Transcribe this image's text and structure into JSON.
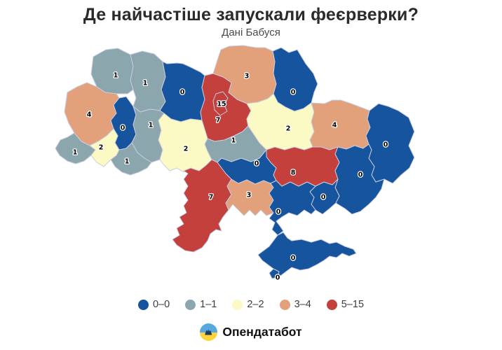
{
  "header": {
    "title": "Де найчастіше запускали феєрверки?",
    "subtitle": "Дані Бабуся"
  },
  "footer": {
    "brand": "Опендатабот",
    "logo_blue": "#55a9e0",
    "logo_yellow": "#ffd23c",
    "logo_silhouette": "#1d3d5c"
  },
  "chart_data": {
    "type": "choropleth-map",
    "title": "Де найчастіше запускали феєрверки?",
    "subtitle": "Дані Бабуся",
    "geography": "ukraine-oblasts",
    "legend_position": "bottom-center",
    "map_border_color": "#c9cde1",
    "label_color": "#000000",
    "label_halo": "#ffffff",
    "buckets": [
      {
        "label": "0–0",
        "min": 0,
        "max": 0,
        "color": "#17549e"
      },
      {
        "label": "1–1",
        "min": 1,
        "max": 1,
        "color": "#8ca6ad"
      },
      {
        "label": "2–2",
        "min": 2,
        "max": 2,
        "color": "#fbfac4"
      },
      {
        "label": "3–4",
        "min": 3,
        "max": 4,
        "color": "#e2a17b"
      },
      {
        "label": "5–15",
        "min": 5,
        "max": 15,
        "color": "#c4403c"
      }
    ],
    "regions": [
      {
        "id": "volyn",
        "value": 1,
        "label_x": 165,
        "label_y": 107
      },
      {
        "id": "rivne",
        "value": 1,
        "label_x": 207,
        "label_y": 118
      },
      {
        "id": "zhytomyr",
        "value": 0,
        "label_x": 260,
        "label_y": 131
      },
      {
        "id": "chernihiv",
        "value": 3,
        "label_x": 352,
        "label_y": 108
      },
      {
        "id": "sumy",
        "value": 0,
        "label_x": 418,
        "label_y": 131
      },
      {
        "id": "kyiv-oblast",
        "value": 7,
        "label_x": 311,
        "label_y": 171
      },
      {
        "id": "kyiv-city",
        "value": 15,
        "label_x": 316,
        "label_y": 148
      },
      {
        "id": "lviv",
        "value": 4,
        "label_x": 127,
        "label_y": 163
      },
      {
        "id": "ternopil",
        "value": 0,
        "label_x": 175,
        "label_y": 182
      },
      {
        "id": "khmelnytskyi",
        "value": 1,
        "label_x": 215,
        "label_y": 178
      },
      {
        "id": "zakarpattia",
        "value": 1,
        "label_x": 107,
        "label_y": 217
      },
      {
        "id": "ivano-frankivsk",
        "value": 2,
        "label_x": 144,
        "label_y": 210
      },
      {
        "id": "chernivtsi",
        "value": 1,
        "label_x": 181,
        "label_y": 230
      },
      {
        "id": "vinnytsia",
        "value": 2,
        "label_x": 265,
        "label_y": 212
      },
      {
        "id": "cherkasy",
        "value": 1,
        "label_x": 333,
        "label_y": 200
      },
      {
        "id": "poltava",
        "value": 2,
        "label_x": 411,
        "label_y": 183
      },
      {
        "id": "kharkiv",
        "value": 4,
        "label_x": 477,
        "label_y": 178
      },
      {
        "id": "luhansk",
        "value": 0,
        "label_x": 550,
        "label_y": 206
      },
      {
        "id": "kirovohrad",
        "value": 0,
        "label_x": 366,
        "label_y": 233
      },
      {
        "id": "dnipropetrovsk",
        "value": 8,
        "label_x": 418,
        "label_y": 246
      },
      {
        "id": "donetsk",
        "value": 0,
        "label_x": 514,
        "label_y": 249
      },
      {
        "id": "odesa",
        "value": 7,
        "label_x": 301,
        "label_y": 281
      },
      {
        "id": "mykolaiv",
        "value": 3,
        "label_x": 355,
        "label_y": 278
      },
      {
        "id": "zaporizhzhia",
        "value": 0,
        "label_x": 461,
        "label_y": 281
      },
      {
        "id": "kherson",
        "value": 0,
        "label_x": 397,
        "label_y": 302
      },
      {
        "id": "crimea",
        "value": 0,
        "label_x": 418,
        "label_y": 368
      },
      {
        "id": "sevastopol",
        "value": 0,
        "label_x": 396,
        "label_y": 396
      }
    ]
  }
}
